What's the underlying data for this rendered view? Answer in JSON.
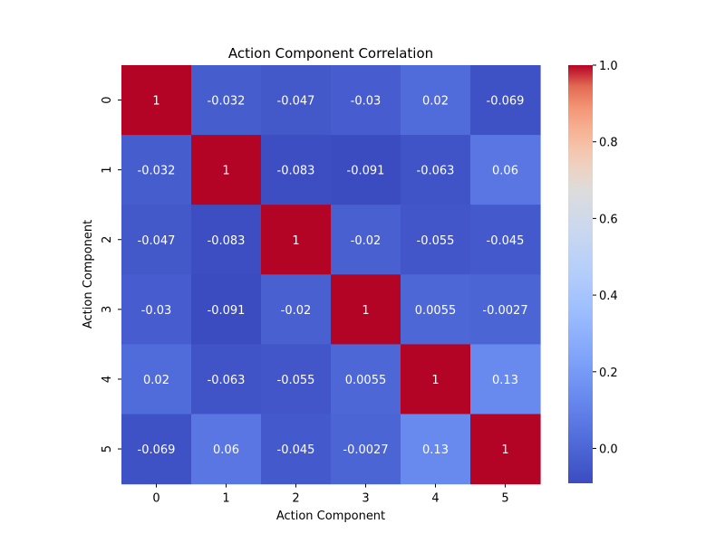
{
  "chart_data": {
    "type": "heatmap",
    "title": "Action Component Correlation",
    "xlabel": "Action Component",
    "ylabel": "Action Component",
    "x_categories": [
      "0",
      "1",
      "2",
      "3",
      "4",
      "5"
    ],
    "y_categories": [
      "0",
      "1",
      "2",
      "3",
      "4",
      "5"
    ],
    "values": [
      [
        1,
        -0.032,
        -0.047,
        -0.03,
        0.02,
        -0.069
      ],
      [
        -0.032,
        1,
        -0.083,
        -0.091,
        -0.063,
        0.06
      ],
      [
        -0.047,
        -0.083,
        1,
        -0.02,
        -0.055,
        -0.045
      ],
      [
        -0.03,
        -0.091,
        -0.02,
        1,
        0.0055,
        -0.0027
      ],
      [
        0.02,
        -0.063,
        -0.055,
        0.0055,
        1,
        0.13
      ],
      [
        -0.069,
        0.06,
        -0.045,
        -0.0027,
        0.13,
        1
      ]
    ],
    "annotations": [
      [
        "1",
        "-0.032",
        "-0.047",
        "-0.03",
        "0.02",
        "-0.069"
      ],
      [
        "-0.032",
        "1",
        "-0.083",
        "-0.091",
        "-0.063",
        "0.06"
      ],
      [
        "-0.047",
        "-0.083",
        "1",
        "-0.02",
        "-0.055",
        "-0.045"
      ],
      [
        "-0.03",
        "-0.091",
        "-0.02",
        "1",
        "0.0055",
        "-0.0027"
      ],
      [
        "0.02",
        "-0.063",
        "-0.055",
        "0.0055",
        "1",
        "0.13"
      ],
      [
        "-0.069",
        "0.06",
        "-0.045",
        "-0.0027",
        "0.13",
        "1"
      ]
    ],
    "colormap": "coolwarm",
    "color_range": [
      -0.091,
      1.0
    ],
    "colorbar": {
      "ticks": [
        0.0,
        0.2,
        0.4,
        0.6,
        0.8,
        1.0
      ],
      "tick_labels": [
        "0.0",
        "0.2",
        "0.4",
        "0.6",
        "0.8",
        "1.0"
      ],
      "placement": "right"
    },
    "grid": false
  }
}
